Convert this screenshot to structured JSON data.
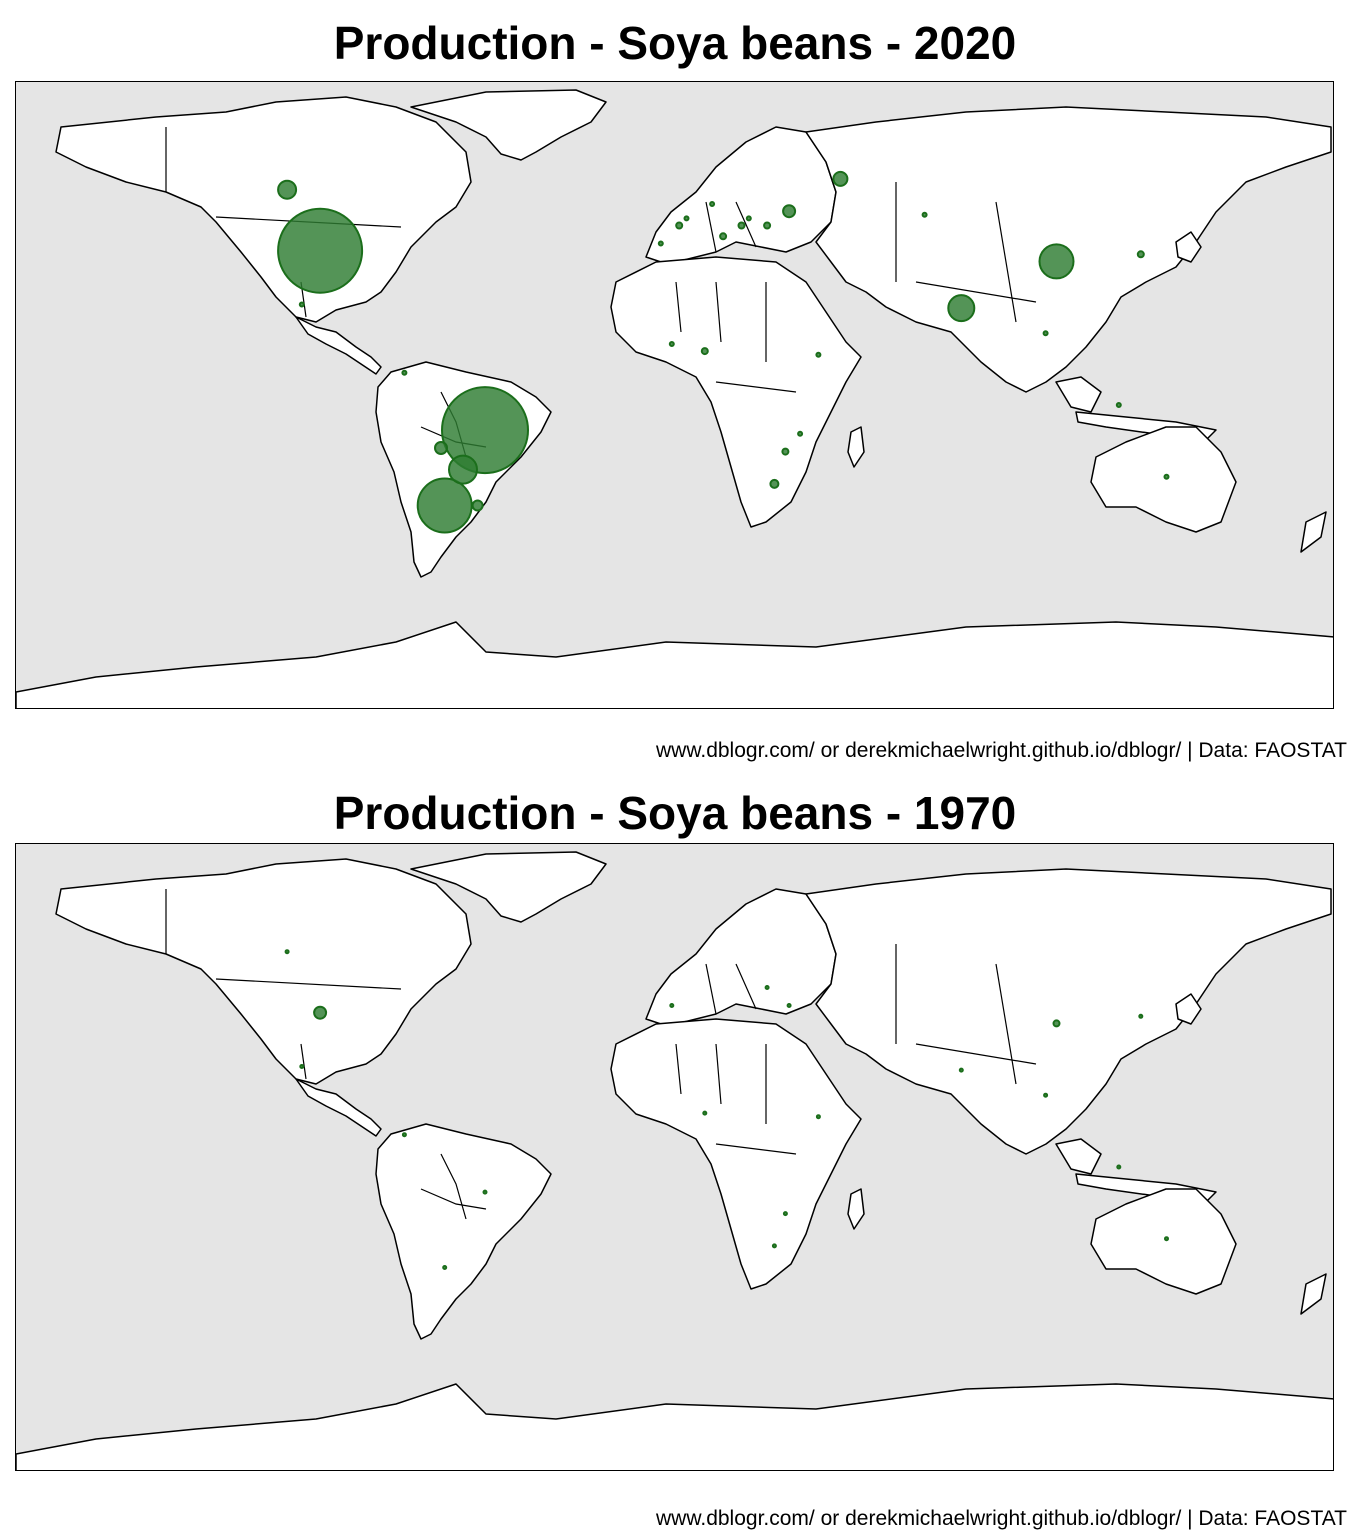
{
  "colors": {
    "ocean": "#e5e5e5",
    "land": "#ffffff",
    "bubble": "#2e7d32",
    "bubble_stroke": "#1b6e1b"
  },
  "panels": [
    {
      "title": "Production - Soya beans - 2020",
      "caption": "www.dblogr.com/ or derekmichaelwright.github.io/dblogr/ | Data: FAOSTAT",
      "bubbles": [
        {
          "lon": -97,
          "lat": 38,
          "r": 42
        },
        {
          "lon": -52,
          "lat": -12,
          "r": 43
        },
        {
          "lon": -63,
          "lat": -33,
          "r": 27
        },
        {
          "lon": -58,
          "lat": -23,
          "r": 14
        },
        {
          "lon": -106,
          "lat": 55,
          "r": 9
        },
        {
          "lon": 104,
          "lat": 35,
          "r": 17
        },
        {
          "lon": 78,
          "lat": 22,
          "r": 13
        },
        {
          "lon": 45,
          "lat": 58,
          "r": 7
        },
        {
          "lon": 31,
          "lat": 49,
          "r": 6
        },
        {
          "lon": -64,
          "lat": -17,
          "r": 6
        },
        {
          "lon": -54,
          "lat": -33,
          "r": 5
        },
        {
          "lon": 27,
          "lat": -27,
          "r": 4
        },
        {
          "lon": 30,
          "lat": -18,
          "r": 3
        },
        {
          "lon": 8,
          "lat": 10,
          "r": 3
        },
        {
          "lon": 13,
          "lat": 42,
          "r": 3
        },
        {
          "lon": 1,
          "lat": 45,
          "r": 3
        },
        {
          "lon": 18,
          "lat": 45,
          "r": 3
        },
        {
          "lon": 25,
          "lat": 45,
          "r": 3
        },
        {
          "lon": 20,
          "lat": 47,
          "r": 2
        },
        {
          "lon": 127,
          "lat": 37,
          "r": 3
        },
        {
          "lon": 68,
          "lat": 48,
          "r": 2
        },
        {
          "lon": -102,
          "lat": 23,
          "r": 2
        },
        {
          "lon": 3,
          "lat": 47,
          "r": 2
        },
        {
          "lon": -1,
          "lat": 12,
          "r": 2
        },
        {
          "lon": 39,
          "lat": 9,
          "r": 2
        },
        {
          "lon": 34,
          "lat": -13,
          "r": 2
        },
        {
          "lon": 121,
          "lat": -5,
          "r": 2
        },
        {
          "lon": 101,
          "lat": 15,
          "r": 2
        },
        {
          "lon": 134,
          "lat": -25,
          "r": 2
        },
        {
          "lon": -4,
          "lat": 40,
          "r": 2
        },
        {
          "lon": 10,
          "lat": 51,
          "r": 2
        },
        {
          "lon": -74,
          "lat": 4,
          "r": 2
        }
      ]
    },
    {
      "title": "Production - Soya beans - 1970",
      "caption": "www.dblogr.com/ or derekmichaelwright.github.io/dblogr/ | Data: FAOSTAT",
      "bubbles": [
        {
          "lon": -97,
          "lat": 38,
          "r": 6
        },
        {
          "lon": 104,
          "lat": 35,
          "r": 3
        },
        {
          "lon": -106,
          "lat": 55,
          "r": 1.5
        },
        {
          "lon": -102,
          "lat": 23,
          "r": 1.5
        },
        {
          "lon": -52,
          "lat": -12,
          "r": 1.5
        },
        {
          "lon": -63,
          "lat": -33,
          "r": 1.5
        },
        {
          "lon": -74,
          "lat": 4,
          "r": 1.5
        },
        {
          "lon": 134,
          "lat": -25,
          "r": 1.5
        },
        {
          "lon": 127,
          "lat": 37,
          "r": 1.5
        },
        {
          "lon": 78,
          "lat": 22,
          "r": 1.5
        },
        {
          "lon": 101,
          "lat": 15,
          "r": 1.5
        },
        {
          "lon": 121,
          "lat": -5,
          "r": 1.5
        },
        {
          "lon": 27,
          "lat": -27,
          "r": 1.5
        },
        {
          "lon": 30,
          "lat": -18,
          "r": 1.5
        },
        {
          "lon": 8,
          "lat": 10,
          "r": 1.5
        },
        {
          "lon": 39,
          "lat": 9,
          "r": 1.5
        },
        {
          "lon": -1,
          "lat": 40,
          "r": 1.5
        },
        {
          "lon": 25,
          "lat": 45,
          "r": 1.5
        },
        {
          "lon": 31,
          "lat": 40,
          "r": 1.5
        }
      ]
    }
  ]
}
